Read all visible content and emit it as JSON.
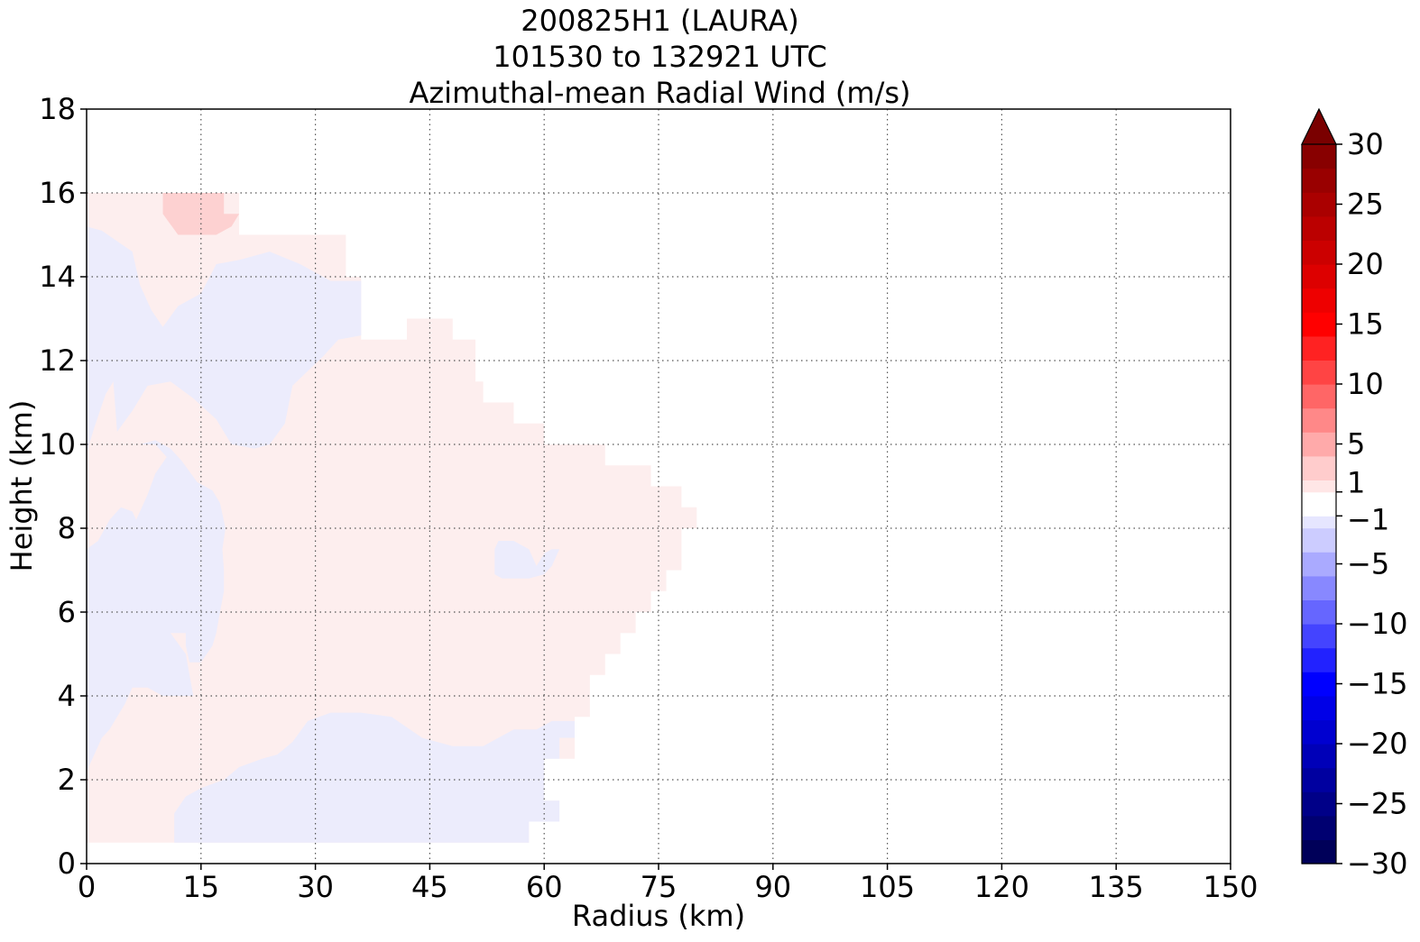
{
  "title_lines": [
    "200825H1 (LAURA)",
    "101530 to 132921 UTC",
    "Azimuthal-mean Radial Wind (m/s)"
  ],
  "chart_data": {
    "type": "heatmap",
    "subtype": "filled-contour",
    "xlabel": "Radius (km)",
    "ylabel": "Height (km)",
    "xlim": [
      0,
      150
    ],
    "ylim": [
      0,
      18
    ],
    "xticks": [
      0,
      15,
      30,
      45,
      60,
      75,
      90,
      105,
      120,
      135,
      150
    ],
    "yticks": [
      0,
      2,
      4,
      6,
      8,
      10,
      12,
      14,
      16,
      18
    ],
    "grid": true,
    "grid_style": "dotted",
    "colormap": "seismic",
    "colorbar": {
      "min": -30,
      "max": 30,
      "extend": "max",
      "tick_values": [
        -30,
        -25,
        -20,
        -15,
        -10,
        -5,
        -1,
        1,
        5,
        10,
        15,
        20,
        25,
        30
      ],
      "tick_labels": [
        "−30",
        "−25",
        "−20",
        "−15",
        "−10",
        "−5",
        "−1",
        "1",
        "5",
        "10",
        "15",
        "20",
        "25",
        "30"
      ],
      "levels": [
        -30,
        -28,
        -26,
        -24,
        -22,
        -20,
        -18,
        -16,
        -14,
        -12,
        -10,
        -8,
        -6,
        -4,
        -2,
        -1,
        1,
        2,
        4,
        6,
        8,
        10,
        12,
        14,
        16,
        18,
        20,
        22,
        24,
        26,
        28,
        30
      ]
    },
    "regions": [
      {
        "range": "1 to 2",
        "color": "#fdeeee",
        "points": [
          [
            0,
            0.5
          ],
          [
            58,
            0.5
          ],
          [
            58,
            1
          ],
          [
            62,
            1
          ],
          [
            62,
            1.5
          ],
          [
            60,
            1.5
          ],
          [
            60,
            3
          ],
          [
            62,
            3
          ],
          [
            62,
            2.5
          ],
          [
            64,
            2.5
          ],
          [
            64,
            3.5
          ],
          [
            66,
            3.5
          ],
          [
            66,
            4.5
          ],
          [
            68,
            4.5
          ],
          [
            68,
            5
          ],
          [
            70,
            5
          ],
          [
            70,
            5.5
          ],
          [
            72,
            5.5
          ],
          [
            72,
            6
          ],
          [
            74,
            6
          ],
          [
            74,
            6.5
          ],
          [
            76,
            6.5
          ],
          [
            76,
            7
          ],
          [
            78,
            7
          ],
          [
            78,
            8
          ],
          [
            80,
            8
          ],
          [
            80,
            8.5
          ],
          [
            78,
            8.5
          ],
          [
            78,
            9
          ],
          [
            74,
            9
          ],
          [
            74,
            9.5
          ],
          [
            68,
            9.5
          ],
          [
            68,
            10
          ],
          [
            60,
            10
          ],
          [
            60,
            10.5
          ],
          [
            56,
            10.5
          ],
          [
            56,
            11
          ],
          [
            52,
            11
          ],
          [
            52,
            11.5
          ],
          [
            51,
            11.5
          ],
          [
            51,
            12.5
          ],
          [
            48,
            12.5
          ],
          [
            48,
            13
          ],
          [
            42,
            13
          ],
          [
            42,
            12.5
          ],
          [
            36,
            12.5
          ],
          [
            36,
            14
          ],
          [
            34,
            14
          ],
          [
            34,
            15
          ],
          [
            20,
            15
          ],
          [
            20,
            16
          ],
          [
            0,
            16
          ]
        ]
      },
      {
        "range": "-2 to -1",
        "color": "#ececfc",
        "points": [
          [
            0,
            15.2
          ],
          [
            2,
            15.1
          ],
          [
            6,
            14.6
          ],
          [
            7,
            13.8
          ],
          [
            8.5,
            13.2
          ],
          [
            10,
            12.8
          ],
          [
            12,
            13.3
          ],
          [
            15,
            13.6
          ],
          [
            17,
            14.3
          ],
          [
            20,
            14.4
          ],
          [
            24,
            14.6
          ],
          [
            28,
            14.3
          ],
          [
            32,
            13.9
          ],
          [
            36,
            13.9
          ],
          [
            36,
            12.6
          ],
          [
            33,
            12.5
          ],
          [
            31,
            12.1
          ],
          [
            27,
            11.4
          ],
          [
            26,
            10.5
          ],
          [
            24,
            10
          ],
          [
            22,
            9.9
          ],
          [
            19,
            10
          ],
          [
            17,
            10.6
          ],
          [
            14,
            11.1
          ],
          [
            11,
            11.5
          ],
          [
            8,
            11.4
          ],
          [
            6,
            10.8
          ],
          [
            4,
            10.3
          ],
          [
            3.5,
            11.5
          ],
          [
            2.5,
            11.2
          ],
          [
            1,
            10.4
          ],
          [
            0,
            9.8
          ]
        ],
        "direction": "inflow"
      },
      {
        "range": "-2 to -1",
        "color": "#ececfc",
        "points": [
          [
            7,
            10
          ],
          [
            9,
            10
          ],
          [
            10.5,
            9.7
          ],
          [
            9,
            9.3
          ],
          [
            8,
            8.8
          ],
          [
            6.5,
            8.2
          ],
          [
            6.5,
            7.8
          ],
          [
            4.5,
            7.6
          ],
          [
            4.5,
            7.2
          ],
          [
            5,
            7
          ],
          [
            6.5,
            6.8
          ],
          [
            7.5,
            6.2
          ],
          [
            9,
            5.8
          ],
          [
            10,
            5.5
          ],
          [
            11,
            5.5
          ],
          [
            13,
            5.5
          ],
          [
            13,
            5.2
          ],
          [
            13.5,
            4.8
          ],
          [
            15,
            4.8
          ],
          [
            16.5,
            5.2
          ],
          [
            17,
            5.5
          ],
          [
            17.5,
            6
          ],
          [
            18,
            6.5
          ],
          [
            18,
            7
          ],
          [
            17.8,
            7.5
          ],
          [
            18.2,
            8
          ],
          [
            17.5,
            8.6
          ],
          [
            16.5,
            8.9
          ],
          [
            14.5,
            9.1
          ],
          [
            12.5,
            9.6
          ],
          [
            11,
            9.9
          ],
          [
            9,
            10.1
          ]
        ],
        "direction": "inflow"
      },
      {
        "range": "-2 to -1",
        "color": "#ececfc",
        "points": [
          [
            0,
            7.5
          ],
          [
            1.5,
            7.7
          ],
          [
            3,
            8.2
          ],
          [
            4.5,
            8.5
          ],
          [
            6,
            8.4
          ],
          [
            7,
            8
          ],
          [
            7.5,
            7.5
          ],
          [
            7.5,
            6.8
          ],
          [
            9,
            6.2
          ],
          [
            10.5,
            5.8
          ],
          [
            11,
            5.5
          ],
          [
            13,
            5
          ],
          [
            13.5,
            4.5
          ],
          [
            14,
            4
          ],
          [
            10,
            4
          ],
          [
            8,
            4.2
          ],
          [
            6,
            4.2
          ],
          [
            5,
            3.8
          ],
          [
            4,
            3.5
          ],
          [
            3,
            3.2
          ],
          [
            2,
            3
          ],
          [
            1,
            2.6
          ],
          [
            0,
            2.2
          ]
        ],
        "direction": "inflow"
      },
      {
        "range": "-2 to -1",
        "color": "#ececfc",
        "points": [
          [
            11.5,
            0.5
          ],
          [
            58,
            0.5
          ],
          [
            58,
            1
          ],
          [
            62,
            1
          ],
          [
            62,
            1.5
          ],
          [
            60,
            1.5
          ],
          [
            60,
            2.5
          ],
          [
            62,
            2.5
          ],
          [
            62,
            3
          ],
          [
            64,
            3
          ],
          [
            64,
            3.4
          ],
          [
            61,
            3.4
          ],
          [
            59,
            3.2
          ],
          [
            56,
            3.2
          ],
          [
            52,
            2.8
          ],
          [
            48,
            2.8
          ],
          [
            44,
            3
          ],
          [
            40,
            3.5
          ],
          [
            36,
            3.6
          ],
          [
            32,
            3.6
          ],
          [
            29,
            3.4
          ],
          [
            27,
            2.9
          ],
          [
            25,
            2.6
          ],
          [
            23,
            2.5
          ],
          [
            20,
            2.3
          ],
          [
            18,
            2
          ],
          [
            15,
            1.8
          ],
          [
            13,
            1.6
          ],
          [
            11.5,
            1.2
          ]
        ],
        "direction": "inflow"
      },
      {
        "range": "-2 to -1",
        "color": "#ececfc",
        "points": [
          [
            53.5,
            7.5
          ],
          [
            54,
            7.7
          ],
          [
            56,
            7.7
          ],
          [
            58,
            7.5
          ],
          [
            59,
            7.1
          ],
          [
            60,
            7.4
          ],
          [
            61,
            7.5
          ],
          [
            62,
            7.5
          ],
          [
            61,
            7.1
          ],
          [
            60,
            6.9
          ],
          [
            58,
            6.8
          ],
          [
            56,
            6.8
          ],
          [
            54.5,
            6.8
          ],
          [
            53.5,
            6.9
          ]
        ],
        "direction": "inflow"
      },
      {
        "range": "2 to 4",
        "color": "#fdd1d1",
        "points": [
          [
            10,
            16
          ],
          [
            18,
            16
          ],
          [
            18,
            15.5
          ],
          [
            20,
            15.5
          ],
          [
            19,
            15.2
          ],
          [
            17,
            15
          ],
          [
            13,
            15
          ],
          [
            12,
            15
          ],
          [
            10,
            15.5
          ]
        ],
        "direction": "outflow"
      }
    ]
  }
}
